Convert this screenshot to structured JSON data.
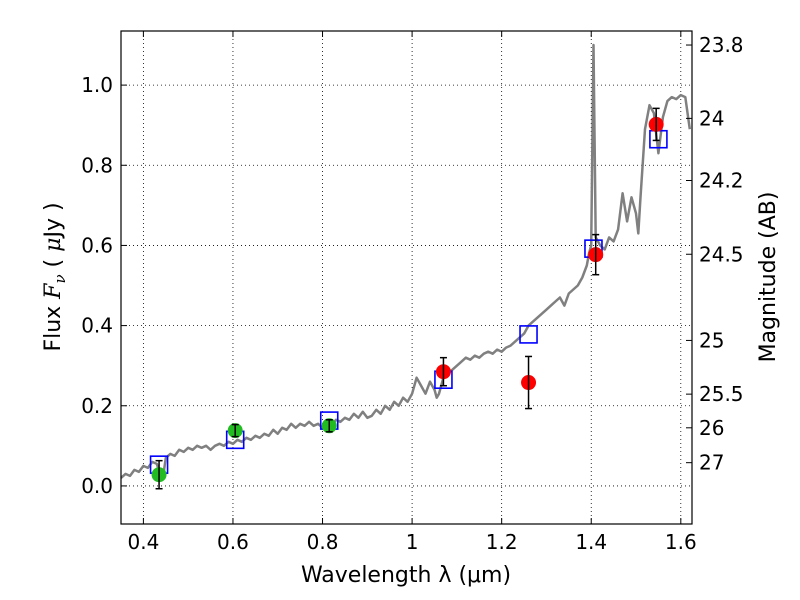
{
  "chart_data": {
    "type": "scatter",
    "xlabel": "Wavelength  λ (μm)",
    "ylabel_parts": {
      "prefix": "Flux  ",
      "var": "F",
      "sub": "ν",
      "unit_prefix": "  ( ",
      "mu": "μ",
      "unit_suffix": "Jy )"
    },
    "right_ylabel": "Magnitude (AB)",
    "xlim": [
      0.35,
      1.625
    ],
    "ylim": [
      -0.095,
      1.135
    ],
    "xticks": [
      {
        "value": 0.4,
        "label": "0.4"
      },
      {
        "value": 0.6,
        "label": "0.6"
      },
      {
        "value": 0.8,
        "label": "0.8"
      },
      {
        "value": 1.0,
        "label": "1"
      },
      {
        "value": 1.2,
        "label": "1.2"
      },
      {
        "value": 1.4,
        "label": "1.4"
      },
      {
        "value": 1.6,
        "label": "1.6"
      }
    ],
    "yticks": [
      {
        "value": 0.0,
        "label": "0.0"
      },
      {
        "value": 0.2,
        "label": "0.2"
      },
      {
        "value": 0.4,
        "label": "0.4"
      },
      {
        "value": 0.6,
        "label": "0.6"
      },
      {
        "value": 0.8,
        "label": "0.8"
      },
      {
        "value": 1.0,
        "label": "1.0"
      }
    ],
    "right_ticks": [
      {
        "flux": 1.1,
        "label": "23.8"
      },
      {
        "flux": 0.917,
        "label": "24"
      },
      {
        "flux": 0.762,
        "label": "24.2"
      },
      {
        "flux": 0.578,
        "label": "24.5"
      },
      {
        "flux": 0.363,
        "label": "25"
      },
      {
        "flux": 0.229,
        "label": "25.5"
      },
      {
        "flux": 0.145,
        "label": "26"
      },
      {
        "flux": 0.058,
        "label": "27"
      }
    ],
    "grid": true,
    "series": [
      {
        "name": "model-sed",
        "kind": "line",
        "color": "#808080",
        "points": [
          [
            0.35,
            0.02
          ],
          [
            0.36,
            0.03
          ],
          [
            0.37,
            0.025
          ],
          [
            0.38,
            0.04
          ],
          [
            0.39,
            0.035
          ],
          [
            0.4,
            0.05
          ],
          [
            0.41,
            0.045
          ],
          [
            0.42,
            0.06
          ],
          [
            0.43,
            0.055
          ],
          [
            0.44,
            0.02
          ],
          [
            0.445,
            0.03
          ],
          [
            0.45,
            0.07
          ],
          [
            0.46,
            0.08
          ],
          [
            0.47,
            0.075
          ],
          [
            0.48,
            0.09
          ],
          [
            0.49,
            0.085
          ],
          [
            0.5,
            0.095
          ],
          [
            0.51,
            0.09
          ],
          [
            0.52,
            0.1
          ],
          [
            0.53,
            0.095
          ],
          [
            0.54,
            0.1
          ],
          [
            0.55,
            0.09
          ],
          [
            0.56,
            0.1
          ],
          [
            0.57,
            0.105
          ],
          [
            0.58,
            0.1
          ],
          [
            0.59,
            0.11
          ],
          [
            0.6,
            0.105
          ],
          [
            0.61,
            0.115
          ],
          [
            0.62,
            0.11
          ],
          [
            0.63,
            0.12
          ],
          [
            0.64,
            0.115
          ],
          [
            0.65,
            0.125
          ],
          [
            0.66,
            0.12
          ],
          [
            0.67,
            0.13
          ],
          [
            0.68,
            0.125
          ],
          [
            0.69,
            0.14
          ],
          [
            0.7,
            0.13
          ],
          [
            0.71,
            0.145
          ],
          [
            0.72,
            0.14
          ],
          [
            0.73,
            0.155
          ],
          [
            0.74,
            0.145
          ],
          [
            0.75,
            0.155
          ],
          [
            0.76,
            0.15
          ],
          [
            0.77,
            0.16
          ],
          [
            0.78,
            0.15
          ],
          [
            0.79,
            0.155
          ],
          [
            0.8,
            0.145
          ],
          [
            0.81,
            0.16
          ],
          [
            0.82,
            0.15
          ],
          [
            0.83,
            0.165
          ],
          [
            0.84,
            0.16
          ],
          [
            0.85,
            0.17
          ],
          [
            0.86,
            0.165
          ],
          [
            0.87,
            0.18
          ],
          [
            0.88,
            0.17
          ],
          [
            0.89,
            0.185
          ],
          [
            0.9,
            0.17
          ],
          [
            0.91,
            0.175
          ],
          [
            0.92,
            0.19
          ],
          [
            0.93,
            0.18
          ],
          [
            0.94,
            0.2
          ],
          [
            0.95,
            0.19
          ],
          [
            0.96,
            0.21
          ],
          [
            0.97,
            0.2
          ],
          [
            0.98,
            0.22
          ],
          [
            0.99,
            0.21
          ],
          [
            1.0,
            0.23
          ],
          [
            1.01,
            0.27
          ],
          [
            1.02,
            0.25
          ],
          [
            1.03,
            0.23
          ],
          [
            1.04,
            0.26
          ],
          [
            1.05,
            0.24
          ],
          [
            1.055,
            0.22
          ],
          [
            1.06,
            0.23
          ],
          [
            1.07,
            0.27
          ],
          [
            1.08,
            0.28
          ],
          [
            1.09,
            0.29
          ],
          [
            1.1,
            0.3
          ],
          [
            1.11,
            0.31
          ],
          [
            1.12,
            0.32
          ],
          [
            1.13,
            0.315
          ],
          [
            1.14,
            0.325
          ],
          [
            1.15,
            0.32
          ],
          [
            1.16,
            0.33
          ],
          [
            1.17,
            0.335
          ],
          [
            1.18,
            0.33
          ],
          [
            1.19,
            0.34
          ],
          [
            1.2,
            0.335
          ],
          [
            1.21,
            0.345
          ],
          [
            1.22,
            0.35
          ],
          [
            1.23,
            0.36
          ],
          [
            1.24,
            0.37
          ],
          [
            1.25,
            0.38
          ],
          [
            1.26,
            0.4
          ],
          [
            1.27,
            0.41
          ],
          [
            1.28,
            0.42
          ],
          [
            1.29,
            0.43
          ],
          [
            1.3,
            0.44
          ],
          [
            1.31,
            0.45
          ],
          [
            1.32,
            0.46
          ],
          [
            1.33,
            0.47
          ],
          [
            1.34,
            0.45
          ],
          [
            1.35,
            0.48
          ],
          [
            1.36,
            0.49
          ],
          [
            1.37,
            0.5
          ],
          [
            1.38,
            0.52
          ],
          [
            1.39,
            0.55
          ],
          [
            1.395,
            0.58
          ],
          [
            1.4,
            0.6
          ],
          [
            1.405,
            1.1
          ],
          [
            1.41,
            0.62
          ],
          [
            1.42,
            0.6
          ],
          [
            1.43,
            0.59
          ],
          [
            1.44,
            0.62
          ],
          [
            1.45,
            0.61
          ],
          [
            1.46,
            0.64
          ],
          [
            1.47,
            0.73
          ],
          [
            1.48,
            0.66
          ],
          [
            1.49,
            0.72
          ],
          [
            1.5,
            0.68
          ],
          [
            1.505,
            0.63
          ],
          [
            1.51,
            0.72
          ],
          [
            1.52,
            0.89
          ],
          [
            1.53,
            0.95
          ],
          [
            1.54,
            0.93
          ],
          [
            1.55,
            0.83
          ],
          [
            1.56,
            0.92
          ],
          [
            1.57,
            0.96
          ],
          [
            1.58,
            0.97
          ],
          [
            1.59,
            0.965
          ],
          [
            1.6,
            0.975
          ],
          [
            1.61,
            0.97
          ],
          [
            1.62,
            0.89
          ]
        ]
      },
      {
        "name": "observed-red",
        "kind": "markers",
        "color": "#ff0000",
        "points": [
          {
            "x": 1.07,
            "y": 0.285,
            "err": 0.035
          },
          {
            "x": 1.26,
            "y": 0.258,
            "err": 0.065
          },
          {
            "x": 1.41,
            "y": 0.577,
            "err": 0.05
          },
          {
            "x": 1.545,
            "y": 0.902,
            "err": 0.04
          }
        ]
      },
      {
        "name": "observed-green",
        "kind": "markers",
        "color": "#22bb22",
        "points": [
          {
            "x": 0.435,
            "y": 0.028,
            "err": 0.035
          },
          {
            "x": 0.605,
            "y": 0.138,
            "err": 0.015
          },
          {
            "x": 0.815,
            "y": 0.15,
            "err": 0.015
          }
        ]
      },
      {
        "name": "model-photometry",
        "kind": "open-squares",
        "color": "#0000ff",
        "points": [
          {
            "x": 0.435,
            "y": 0.053
          },
          {
            "x": 0.605,
            "y": 0.115
          },
          {
            "x": 0.815,
            "y": 0.163
          },
          {
            "x": 1.07,
            "y": 0.265
          },
          {
            "x": 1.26,
            "y": 0.378
          },
          {
            "x": 1.405,
            "y": 0.592
          },
          {
            "x": 1.55,
            "y": 0.865
          }
        ]
      }
    ]
  }
}
